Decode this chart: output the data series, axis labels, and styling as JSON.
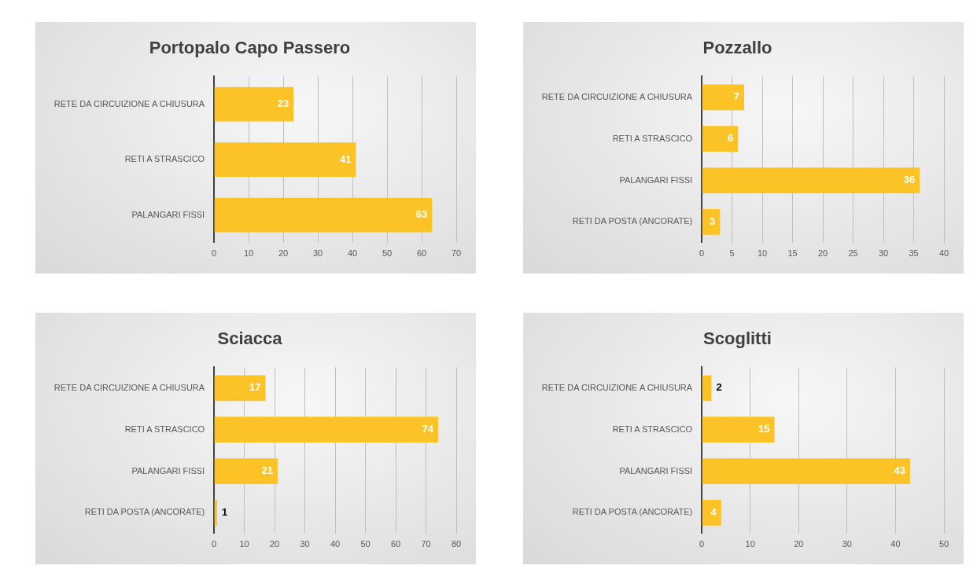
{
  "chart_data": [
    {
      "type": "bar",
      "orientation": "horizontal",
      "title": "Portopalo Capo Passero",
      "categories": [
        "RETE DA CIRCUIZIONE A CHIUSURA",
        "RETI A STRASCICO",
        "PALANGARI FISSI"
      ],
      "values": [
        23,
        41,
        63
      ],
      "color": "#fbc325",
      "xlim": [
        0,
        70
      ],
      "xticks": [
        0,
        10,
        20,
        30,
        40,
        50,
        60,
        70
      ],
      "grid": "x",
      "data_labels": true
    },
    {
      "type": "bar",
      "orientation": "horizontal",
      "title": "Pozzallo",
      "categories": [
        "RETE DA CIRCUIZIONE A CHIUSURA",
        "RETI A STRASCICO",
        "PALANGARI FISSI",
        "RETI DA POSTA (ANCORATE)"
      ],
      "values": [
        7,
        6,
        36,
        3
      ],
      "color": "#fbc325",
      "xlim": [
        0,
        40
      ],
      "xticks": [
        0,
        5,
        10,
        15,
        20,
        25,
        30,
        35,
        40
      ],
      "grid": "x",
      "data_labels": true
    },
    {
      "type": "bar",
      "orientation": "horizontal",
      "title": "Sciacca",
      "categories": [
        "RETE DA CIRCUIZIONE A CHIUSURA",
        "RETI A STRASCICO",
        "PALANGARI FISSI",
        "RETI DA POSTA (ANCORATE)"
      ],
      "values": [
        17,
        74,
        21,
        1
      ],
      "color": "#fbc325",
      "xlim": [
        0,
        80
      ],
      "xticks": [
        0,
        10,
        20,
        30,
        40,
        50,
        60,
        70,
        80
      ],
      "grid": "x",
      "data_labels": true
    },
    {
      "type": "bar",
      "orientation": "horizontal",
      "title": "Scoglitti",
      "categories": [
        "RETE DA CIRCUIZIONE A CHIUSURA",
        "RETI A STRASCICO",
        "PALANGARI FISSI",
        "RETI DA POSTA (ANCORATE)"
      ],
      "values": [
        2,
        15,
        43,
        4
      ],
      "color": "#fbc325",
      "xlim": [
        0,
        50
      ],
      "xticks": [
        0,
        10,
        20,
        30,
        40,
        50
      ],
      "grid": "x",
      "data_labels": true
    }
  ]
}
